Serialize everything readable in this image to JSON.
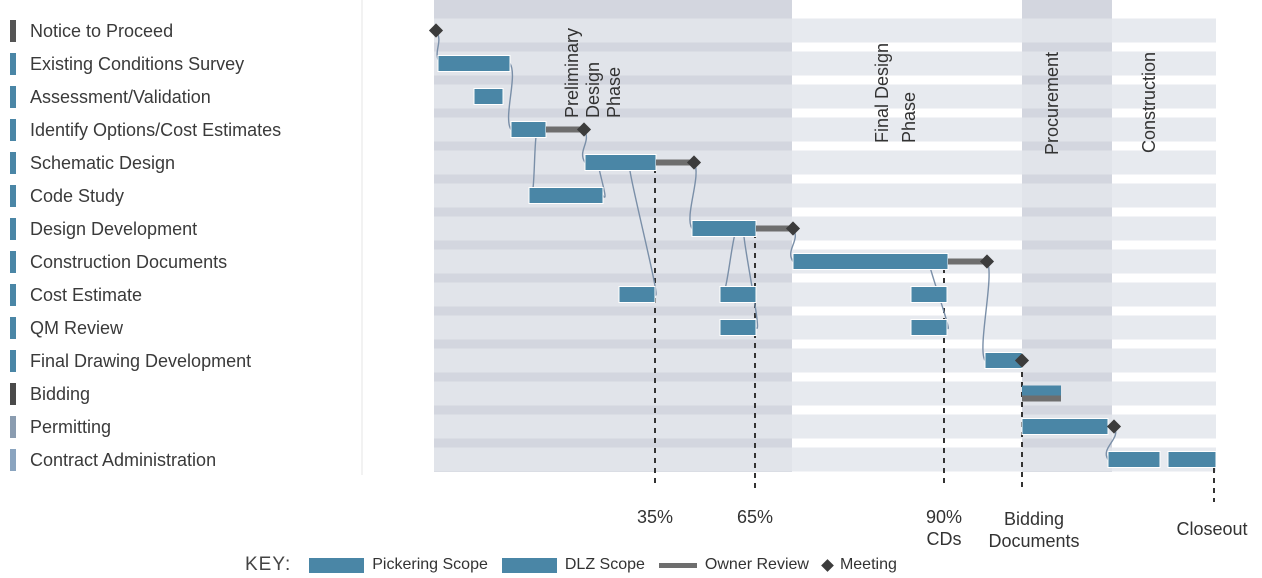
{
  "colors": {
    "pickering": "#4a86a6",
    "dlz": "#4a86a6",
    "owner_review": "#6e6e6e",
    "meeting": "#3c3c3c",
    "row_stripe": "#e3e6ec",
    "phase_band": "#d3d6df",
    "connector": "#7a8fa8"
  },
  "chart_data": {
    "type": "gantt",
    "tasks": [
      {
        "name": "Notice to Proceed",
        "marker": "#555555",
        "bars": [],
        "review": null,
        "meeting": 436
      },
      {
        "name": "Existing Conditions Survey",
        "marker": "#4a86a6",
        "bars": [
          [
            438,
            510
          ]
        ],
        "review": null,
        "meeting": null
      },
      {
        "name": "Assessment/Validation",
        "marker": "#4a86a6",
        "bars": [
          [
            474,
            503
          ]
        ],
        "review": null,
        "meeting": null
      },
      {
        "name": "Identify Options/Cost Estimates",
        "marker": "#4a86a6",
        "bars": [
          [
            511,
            546
          ]
        ],
        "review": [
          546,
          584
        ],
        "meeting": 584
      },
      {
        "name": "Schematic Design",
        "marker": "#4a86a6",
        "bars": [
          [
            585,
            656
          ]
        ],
        "review": [
          656,
          694
        ],
        "meeting": 694
      },
      {
        "name": "Code Study",
        "marker": "#4a86a6",
        "bars": [
          [
            529,
            603
          ]
        ],
        "review": null,
        "meeting": null
      },
      {
        "name": "Design Development",
        "marker": "#4a86a6",
        "bars": [
          [
            692,
            756
          ]
        ],
        "review": [
          756,
          793
        ],
        "meeting": 793
      },
      {
        "name": "Construction Documents",
        "marker": "#4a86a6",
        "bars": [
          [
            793,
            948
          ]
        ],
        "review": [
          948,
          987
        ],
        "meeting": 987
      },
      {
        "name": "Cost Estimate",
        "marker": "#4a86a6",
        "bars": [
          [
            619,
            655
          ],
          [
            720,
            756
          ],
          [
            911,
            947
          ]
        ],
        "review": null,
        "meeting": null
      },
      {
        "name": "QM Review",
        "marker": "#4a86a6",
        "bars": [
          [
            720,
            756
          ],
          [
            911,
            947
          ]
        ],
        "review": null,
        "meeting": null
      },
      {
        "name": "Final Drawing Development",
        "marker": "#4a86a6",
        "bars": [
          [
            985,
            1022
          ]
        ],
        "review": null,
        "meeting": 1022
      },
      {
        "name": "Bidding",
        "marker": "#4a4a4a",
        "bars": [],
        "review": [
          1022,
          1061
        ],
        "meeting": null
      },
      {
        "name": "Permitting",
        "marker": "#8a9cb0",
        "bars": [
          [
            1022,
            1108
          ]
        ],
        "review": null,
        "meeting": 1114
      },
      {
        "name": "Contract Administration",
        "marker": "#8aa4bf",
        "bars": [
          [
            1108,
            1160
          ],
          [
            1168,
            1216
          ]
        ],
        "review": null,
        "meeting": null
      }
    ],
    "phases": [
      {
        "lines": [
          "Preliminary",
          "Design",
          "Phase"
        ]
      },
      {
        "lines": [
          "Final Design",
          "Phase"
        ]
      },
      {
        "lines": [
          "Procurement"
        ]
      },
      {
        "lines": [
          "Construction"
        ]
      }
    ],
    "milestones": [
      {
        "lines": [
          "35%"
        ],
        "x": 655
      },
      {
        "lines": [
          "65%"
        ],
        "x": 755
      },
      {
        "lines": [
          "90%",
          "CDs"
        ],
        "x": 944
      },
      {
        "lines": [
          "Bidding",
          "Documents"
        ],
        "x": 1022
      },
      {
        "lines": [
          "Closeout"
        ],
        "x": 1214
      }
    ]
  },
  "legend": {
    "title": "KEY:",
    "items": [
      {
        "label": "Pickering Scope",
        "kind": "bar",
        "color": "#4a86a6"
      },
      {
        "label": "DLZ Scope",
        "kind": "bar",
        "color": "#4a86a6"
      },
      {
        "label": "Owner Review",
        "kind": "line",
        "color": "#6e6e6e"
      },
      {
        "label": "Meeting",
        "kind": "diamond",
        "color": "#3c3c3c"
      }
    ]
  }
}
